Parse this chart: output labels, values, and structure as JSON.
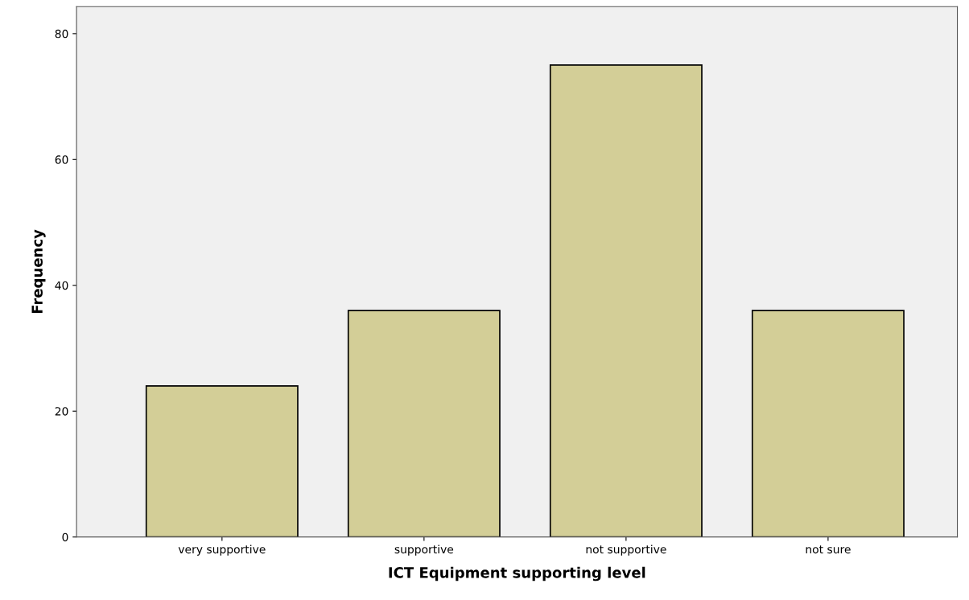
{
  "chart_data": {
    "type": "bar",
    "xlabel": "ICT Equipment supporting level",
    "ylabel": "Frequency",
    "categories": [
      "very supportive",
      "supportive",
      "not supportive",
      "not sure"
    ],
    "values": [
      24,
      36,
      75,
      36
    ],
    "color": "#d3ce97",
    "ylim": [
      0,
      84.3
    ],
    "yticks": [
      0,
      20,
      40,
      60,
      80
    ],
    "grid": false,
    "legend": false
  }
}
